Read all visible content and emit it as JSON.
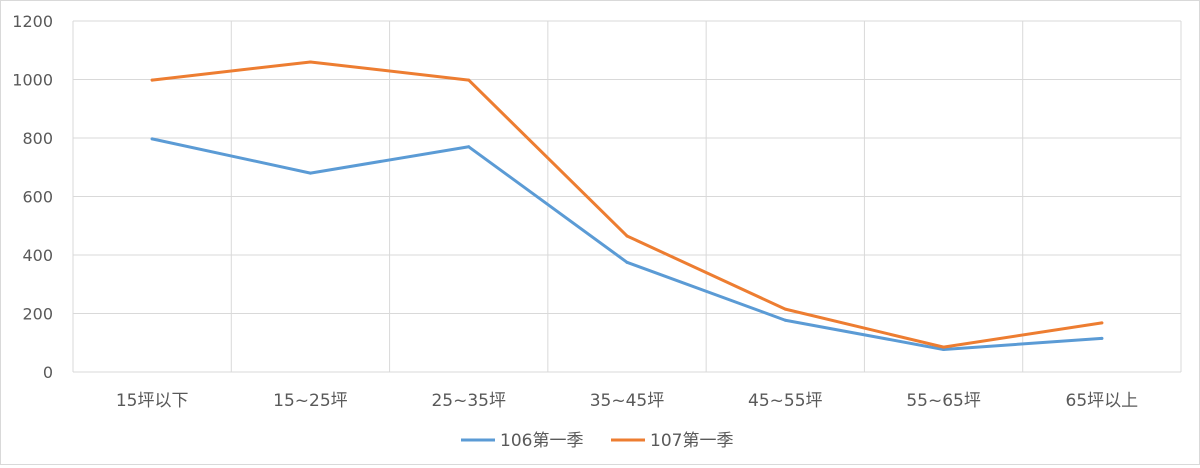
{
  "chart_data": {
    "type": "line",
    "categories": [
      "15坪以下",
      "15~25坪",
      "25~35坪",
      "35~45坪",
      "45~55坪",
      "55~65坪",
      "65坪以上"
    ],
    "series": [
      {
        "name": "106第一季",
        "color": "#5b9bd5",
        "values": [
          797,
          680,
          770,
          375,
          177,
          77,
          115
        ]
      },
      {
        "name": "107第一季",
        "color": "#ed7d31",
        "values": [
          998,
          1060,
          998,
          465,
          215,
          85,
          168
        ]
      }
    ],
    "ylim": [
      0,
      1200
    ],
    "yticks": [
      0,
      200,
      400,
      600,
      800,
      1000,
      1200
    ],
    "grid": true,
    "legend_position": "bottom"
  }
}
